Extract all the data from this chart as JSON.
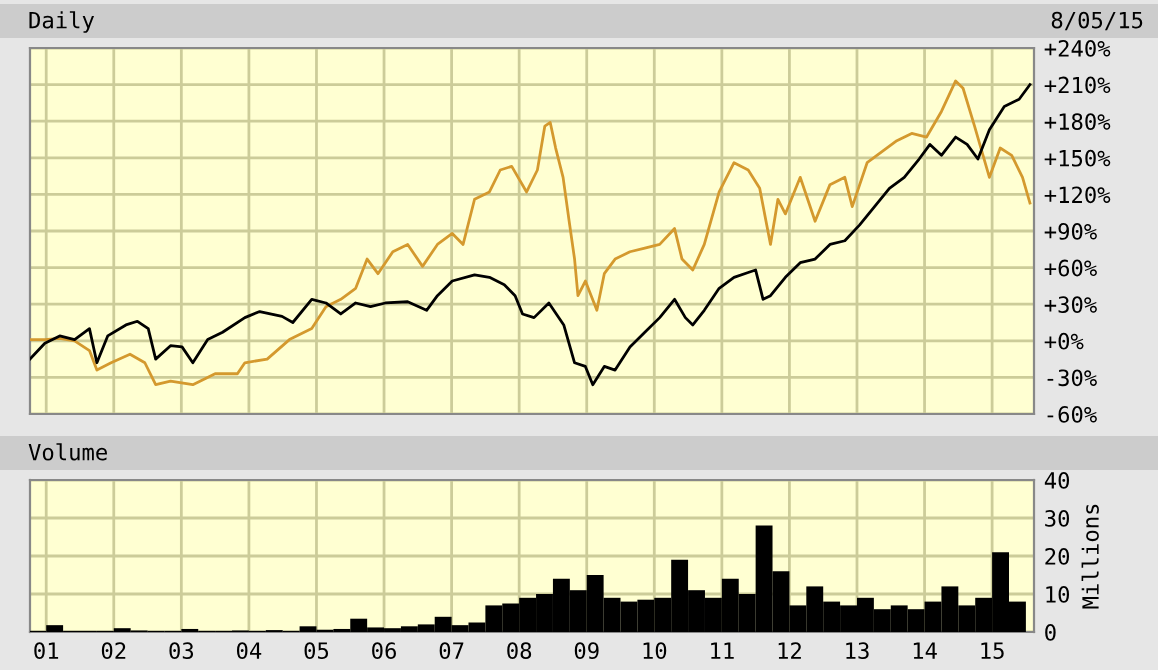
{
  "chart_data": [
    {
      "type": "line",
      "title": "Daily",
      "annotations": [
        "8/05/15"
      ],
      "grid": true,
      "tick_labels": "y",
      "line_style": "solid",
      "marker": "none",
      "xlim": [
        2000.76,
        2015.62
      ],
      "xticks": [
        {
          "value": 2001,
          "label": null
        },
        {
          "value": 2002,
          "label": null
        },
        {
          "value": 2003,
          "label": null
        },
        {
          "value": 2004,
          "label": null
        },
        {
          "value": 2005,
          "label": null
        },
        {
          "value": 2006,
          "label": null
        },
        {
          "value": 2007,
          "label": null
        },
        {
          "value": 2008,
          "label": null
        },
        {
          "value": 2009,
          "label": null
        },
        {
          "value": 2010,
          "label": null
        },
        {
          "value": 2011,
          "label": null
        },
        {
          "value": 2012,
          "label": null
        },
        {
          "value": 2013,
          "label": null
        },
        {
          "value": 2014,
          "label": null
        },
        {
          "value": 2015,
          "label": null
        }
      ],
      "ylim": [
        -60,
        240
      ],
      "yticks": [
        {
          "value": -60,
          "label": "-60%"
        },
        {
          "value": -30,
          "label": "-30%"
        },
        {
          "value": 0,
          "label": "+0%"
        },
        {
          "value": 30,
          "label": "+30%"
        },
        {
          "value": 60,
          "label": "+60%"
        },
        {
          "value": 90,
          "label": "+90%"
        },
        {
          "value": 120,
          "label": "+120%"
        },
        {
          "value": 150,
          "label": "+150%"
        },
        {
          "value": 180,
          "label": "+180%"
        },
        {
          "value": 210,
          "label": "+210%"
        },
        {
          "value": 240,
          "label": "+240%"
        }
      ],
      "series": [
        {
          "color": "#d4992e",
          "x": [
            2000.76,
            2000.98,
            2001.2,
            2001.42,
            2001.64,
            2001.75,
            2001.96,
            2002.24,
            2002.46,
            2002.62,
            2002.84,
            2003.17,
            2003.5,
            2003.83,
            2003.94,
            2004.27,
            2004.6,
            2004.93,
            2005.14,
            2005.36,
            2005.58,
            2005.75,
            2005.91,
            2006.13,
            2006.35,
            2006.57,
            2006.79,
            2007.01,
            2007.17,
            2007.34,
            2007.56,
            2007.72,
            2007.89,
            2008.11,
            2008.27,
            2008.38,
            2008.46,
            2008.54,
            2008.65,
            2008.74,
            2008.82,
            2008.87,
            2008.98,
            2009.15,
            2009.26,
            2009.42,
            2009.64,
            2009.86,
            2010.08,
            2010.3,
            2010.41,
            2010.57,
            2010.74,
            2010.96,
            2011.18,
            2011.39,
            2011.56,
            2011.72,
            2011.83,
            2011.94,
            2012.16,
            2012.38,
            2012.6,
            2012.82,
            2012.93,
            2013.15,
            2013.37,
            2013.59,
            2013.81,
            2014.03,
            2014.25,
            2014.46,
            2014.57,
            2014.74,
            2014.96,
            2015.12,
            2015.29,
            2015.45,
            2015.56
          ],
          "values": [
            1,
            1,
            2,
            0,
            -8,
            -24,
            -18,
            -11,
            -18,
            -36,
            -33,
            -36,
            -27,
            -27,
            -18,
            -15,
            1,
            10,
            28,
            34,
            43,
            67,
            55,
            73,
            79,
            61,
            79,
            88,
            79,
            116,
            122,
            140,
            143,
            122,
            140,
            176,
            179,
            158,
            134,
            98,
            67,
            37,
            49,
            25,
            55,
            67,
            73,
            76,
            79,
            92,
            67,
            58,
            79,
            122,
            146,
            140,
            125,
            79,
            116,
            104,
            134,
            98,
            128,
            134,
            110,
            146,
            155,
            164,
            170,
            167,
            188,
            213,
            207,
            176,
            134,
            158,
            152,
            134,
            113
          ]
        },
        {
          "color": "#000000",
          "x": [
            2000.76,
            2000.98,
            2001.2,
            2001.42,
            2001.64,
            2001.75,
            2001.91,
            2002.18,
            2002.35,
            2002.51,
            2002.62,
            2002.84,
            2003.01,
            2003.17,
            2003.39,
            2003.61,
            2003.94,
            2004.16,
            2004.49,
            2004.65,
            2004.93,
            2005.14,
            2005.36,
            2005.58,
            2005.8,
            2006.02,
            2006.35,
            2006.63,
            2006.79,
            2007.01,
            2007.34,
            2007.56,
            2007.78,
            2007.94,
            2008.05,
            2008.22,
            2008.44,
            2008.66,
            2008.82,
            2008.98,
            2009.09,
            2009.26,
            2009.42,
            2009.64,
            2009.86,
            2010.08,
            2010.3,
            2010.46,
            2010.57,
            2010.74,
            2010.96,
            2011.18,
            2011.39,
            2011.5,
            2011.61,
            2011.72,
            2011.94,
            2012.16,
            2012.38,
            2012.6,
            2012.82,
            2013.04,
            2013.26,
            2013.48,
            2013.7,
            2013.92,
            2014.08,
            2014.25,
            2014.46,
            2014.63,
            2014.79,
            2014.96,
            2015.18,
            2015.4,
            2015.56
          ],
          "values": [
            -15,
            -2,
            4,
            1,
            10,
            -18,
            4,
            13,
            16,
            10,
            -15,
            -4,
            -5,
            -18,
            1,
            7,
            19,
            24,
            20,
            15,
            34,
            31,
            22,
            31,
            28,
            31,
            32,
            25,
            37,
            49,
            54,
            52,
            46,
            37,
            22,
            19,
            31,
            13,
            -18,
            -21,
            -36,
            -21,
            -24,
            -5,
            7,
            19,
            34,
            19,
            13,
            25,
            43,
            52,
            56,
            58,
            34,
            37,
            52,
            64,
            67,
            79,
            82,
            95,
            110,
            125,
            134,
            149,
            161,
            152,
            167,
            161,
            149,
            173,
            192,
            198,
            210
          ]
        }
      ]
    },
    {
      "type": "bar",
      "title": "Volume",
      "ylabel": "Millions",
      "grid": true,
      "xlim": [
        2000.76,
        2015.62
      ],
      "xticks": [
        {
          "value": 2001,
          "label": "01"
        },
        {
          "value": 2002,
          "label": "02"
        },
        {
          "value": 2003,
          "label": "03"
        },
        {
          "value": 2004,
          "label": "04"
        },
        {
          "value": 2005,
          "label": "05"
        },
        {
          "value": 2006,
          "label": "06"
        },
        {
          "value": 2007,
          "label": "07"
        },
        {
          "value": 2008,
          "label": "08"
        },
        {
          "value": 2009,
          "label": "09"
        },
        {
          "value": 2010,
          "label": "10"
        },
        {
          "value": 2011,
          "label": "11"
        },
        {
          "value": 2012,
          "label": "12"
        },
        {
          "value": 2013,
          "label": "13"
        },
        {
          "value": 2014,
          "label": "14"
        },
        {
          "value": 2015,
          "label": "15"
        }
      ],
      "ylim": [
        0,
        40
      ],
      "yticks": [
        0,
        10,
        20,
        30,
        40
      ],
      "series": [
        {
          "color": "#000000",
          "x": [
            2000.875,
            2001.125,
            2001.375,
            2001.625,
            2001.875,
            2002.125,
            2002.375,
            2002.625,
            2002.875,
            2003.125,
            2003.375,
            2003.625,
            2003.875,
            2004.125,
            2004.375,
            2004.625,
            2004.875,
            2005.125,
            2005.375,
            2005.625,
            2005.875,
            2006.125,
            2006.375,
            2006.625,
            2006.875,
            2007.125,
            2007.375,
            2007.625,
            2007.875,
            2008.125,
            2008.375,
            2008.625,
            2008.875,
            2009.125,
            2009.375,
            2009.625,
            2009.875,
            2010.125,
            2010.375,
            2010.625,
            2010.875,
            2011.125,
            2011.375,
            2011.625,
            2011.875,
            2012.125,
            2012.375,
            2012.625,
            2012.875,
            2013.125,
            2013.375,
            2013.625,
            2013.875,
            2014.125,
            2014.375,
            2014.625,
            2014.875,
            2015.125,
            2015.375
          ],
          "values": [
            0.3,
            1.8,
            0.3,
            0.3,
            0.3,
            1.0,
            0.4,
            0.3,
            0.3,
            0.8,
            0.3,
            0.3,
            0.4,
            0.3,
            0.5,
            0.3,
            1.5,
            0.6,
            0.8,
            3.5,
            1.2,
            1.0,
            1.5,
            2.0,
            4.0,
            1.8,
            2.5,
            7.0,
            7.5,
            9.0,
            10.0,
            14.0,
            11.0,
            15.0,
            9.0,
            8.0,
            8.5,
            9.0,
            19.0,
            11.0,
            9.0,
            14.0,
            10.0,
            28.0,
            16.0,
            7.0,
            12.0,
            8.0,
            7.0,
            9.0,
            6.0,
            7.0,
            6.0,
            8.0,
            12.0,
            7.0,
            9.0,
            21.0,
            8.0
          ]
        }
      ]
    }
  ]
}
